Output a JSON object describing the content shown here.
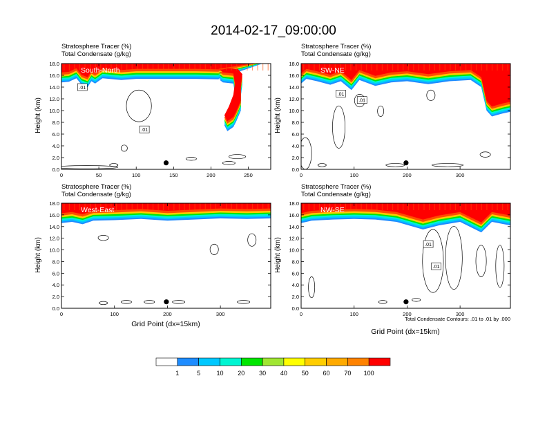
{
  "figure": {
    "title": "2014-02-17_09:00:00",
    "panel_subtitle_1": "Stratosphere Tracer   (%)",
    "panel_subtitle_2": "Total Condensate   (g/kg)",
    "ylabel": "Height (km)",
    "xlabel": "Grid Point (dx=15km)",
    "contour_note": "Total Condensate Contours: .01 to .01 by .000",
    "contour_label": ".01"
  },
  "colors": {
    "scale": [
      "#ffffff",
      "#1e8cff",
      "#00c8ff",
      "#00f5d2",
      "#00dc78",
      "#00e600",
      "#a0e632",
      "#ffff00",
      "#ffcd00",
      "#ffaa00",
      "#ff8200",
      "#ff4b00",
      "#ff0000"
    ],
    "band_high": "#ff0000",
    "band_mid": "#ff4b00",
    "band_edge": "#ffcd00"
  },
  "chart_data": [
    {
      "type": "heatmap",
      "panel_label": "South-North",
      "xlim": [
        0,
        280
      ],
      "ylim": [
        0,
        18
      ],
      "x_ticks": [
        "0",
        "50",
        "100",
        "150",
        "200",
        "250"
      ],
      "x_tick_values": [
        0,
        50,
        100,
        150,
        200,
        250
      ],
      "y_ticks": [
        "0.0",
        "2.0",
        "4.0",
        "6.0",
        "8.0",
        "10.0",
        "12.0",
        "14.0",
        "16.0",
        "18.0"
      ],
      "tropopause_km": [
        [
          0,
          14.8
        ],
        [
          10,
          14.9
        ],
        [
          20,
          15.5
        ],
        [
          27,
          14.4
        ],
        [
          35,
          14.0
        ],
        [
          40,
          15.0
        ],
        [
          45,
          14.6
        ],
        [
          55,
          15.5
        ],
        [
          80,
          15.2
        ],
        [
          100,
          15.4
        ],
        [
          130,
          15.4
        ],
        [
          180,
          15.4
        ],
        [
          216,
          15.3
        ],
        [
          222,
          15.5
        ],
        [
          236,
          15.4
        ],
        [
          242,
          14.5
        ],
        [
          240,
          12.5
        ],
        [
          240,
          10.0
        ],
        [
          234,
          8.2
        ],
        [
          230,
          7.2
        ],
        [
          222,
          6.5
        ],
        [
          218,
          7.5
        ],
        [
          224,
          9.0
        ],
        [
          230,
          11.0
        ],
        [
          232,
          13.0
        ],
        [
          230,
          14.6
        ],
        [
          216,
          14.8
        ],
        [
          210,
          15.4
        ]
      ],
      "marker_x": 140,
      "marker_y": 1.1,
      "contour_labels_at": [
        [
          28,
          14.0
        ],
        [
          111,
          6.8
        ]
      ]
    },
    {
      "type": "heatmap",
      "panel_label": "SW-NE",
      "xlim": [
        0,
        395
      ],
      "ylim": [
        0,
        18
      ],
      "x_ticks": [
        "0",
        "100",
        "200",
        "300"
      ],
      "x_tick_values": [
        0,
        100,
        200,
        300
      ],
      "y_ticks": [
        "0.0",
        "2.0",
        "4.0",
        "6.0",
        "8.0",
        "10.0",
        "12.0",
        "14.0",
        "16.0",
        "18.0"
      ],
      "tropopause_km": [
        [
          0,
          14.6
        ],
        [
          10,
          15.4
        ],
        [
          30,
          15.0
        ],
        [
          55,
          14.4
        ],
        [
          75,
          15.0
        ],
        [
          95,
          13.5
        ],
        [
          110,
          15.2
        ],
        [
          140,
          14.2
        ],
        [
          170,
          14.8
        ],
        [
          200,
          15.0
        ],
        [
          240,
          14.5
        ],
        [
          280,
          15.0
        ],
        [
          320,
          15.2
        ],
        [
          340,
          14.0
        ],
        [
          350,
          10.0
        ],
        [
          360,
          9.0
        ],
        [
          380,
          9.5
        ],
        [
          395,
          9.8
        ]
      ],
      "marker_x": 198,
      "marker_y": 1.1,
      "contour_labels_at": [
        [
          75,
          12.9
        ],
        [
          115,
          11.8
        ]
      ]
    },
    {
      "type": "heatmap",
      "panel_label": "West-East",
      "xlim": [
        0,
        395
      ],
      "ylim": [
        0,
        18
      ],
      "x_ticks": [
        "0",
        "100",
        "200",
        "300"
      ],
      "x_tick_values": [
        0,
        100,
        200,
        300
      ],
      "y_ticks": [
        "0.0",
        "2.0",
        "4.0",
        "6.0",
        "8.0",
        "10.0",
        "12.0",
        "14.0",
        "16.0",
        "18.0"
      ],
      "tropopause_km": [
        [
          0,
          14.6
        ],
        [
          20,
          14.8
        ],
        [
          40,
          14.4
        ],
        [
          60,
          15.0
        ],
        [
          100,
          15.1
        ],
        [
          150,
          15.3
        ],
        [
          200,
          15.0
        ],
        [
          250,
          15.2
        ],
        [
          300,
          15.4
        ],
        [
          350,
          15.3
        ],
        [
          395,
          15.4
        ]
      ],
      "marker_x": 198,
      "marker_y": 1.1,
      "contour_labels_at": []
    },
    {
      "type": "heatmap",
      "panel_label": "NW-SE",
      "xlim": [
        0,
        395
      ],
      "ylim": [
        0,
        18
      ],
      "x_ticks": [
        "0",
        "100",
        "200",
        "300"
      ],
      "x_tick_values": [
        0,
        100,
        200,
        300
      ],
      "y_ticks": [
        "0.0",
        "2.0",
        "4.0",
        "6.0",
        "8.0",
        "10.0",
        "12.0",
        "14.0",
        "16.0",
        "18.0"
      ],
      "tropopause_km": [
        [
          0,
          14.6
        ],
        [
          20,
          15.0
        ],
        [
          60,
          15.2
        ],
        [
          100,
          15.3
        ],
        [
          140,
          15.2
        ],
        [
          180,
          14.8
        ],
        [
          230,
          13.5
        ],
        [
          260,
          14.2
        ],
        [
          300,
          14.8
        ],
        [
          340,
          13.0
        ],
        [
          360,
          14.8
        ],
        [
          395,
          14.2
        ]
      ],
      "marker_x": 198,
      "marker_y": 1.1,
      "contour_labels_at": [
        [
          240,
          11.0
        ],
        [
          255,
          7.2
        ]
      ]
    }
  ],
  "colorbar": {
    "labels": [
      "1",
      "5",
      "10",
      "20",
      "30",
      "40",
      "50",
      "60",
      "70",
      "100"
    ]
  }
}
